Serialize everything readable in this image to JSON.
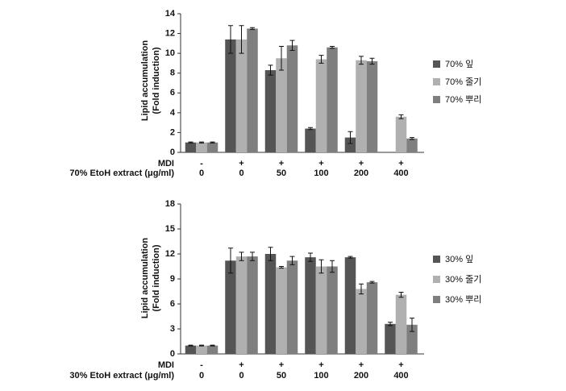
{
  "chart_data": [
    {
      "type": "bar",
      "ylabel": [
        "Lipid accumulation",
        "(Fold induction)"
      ],
      "row_labels": [
        "MDI",
        "70% EtoH extract (μg/ml)"
      ],
      "mdi": [
        "-",
        "+",
        "+",
        "+",
        "+",
        "+"
      ],
      "categories": [
        "0",
        "0",
        "50",
        "100",
        "200",
        "400"
      ],
      "ylim": [
        0,
        14
      ],
      "yticks": [
        0,
        2,
        4,
        6,
        8,
        10,
        12,
        14
      ],
      "series": [
        {
          "name": "70% 잎",
          "color": "#555555",
          "values": [
            1,
            11.4,
            8.3,
            2.4,
            1.5,
            null
          ],
          "errors": [
            0.05,
            1.4,
            0.5,
            0.1,
            0.6,
            null
          ]
        },
        {
          "name": "70% 줄기",
          "color": "#b0b0b0",
          "values": [
            1,
            11.4,
            9.5,
            9.4,
            9.3,
            3.6
          ],
          "errors": [
            0.05,
            1.4,
            1.2,
            0.4,
            0.4,
            0.2
          ]
        },
        {
          "name": "70% 뿌리",
          "color": "#7f7f7f",
          "values": [
            1,
            12.5,
            10.8,
            10.6,
            9.2,
            1.4
          ],
          "errors": [
            0.05,
            0.1,
            0.5,
            0.1,
            0.3,
            0.1
          ]
        }
      ]
    },
    {
      "type": "bar",
      "ylabel": [
        "Lipid accumulation",
        "(Fold induction)"
      ],
      "row_labels": [
        "MDI",
        "30% EtoH extract (μg/ml)"
      ],
      "mdi": [
        "-",
        "+",
        "+",
        "+",
        "+",
        "+"
      ],
      "categories": [
        "0",
        "0",
        "50",
        "100",
        "200",
        "400"
      ],
      "ylim": [
        0,
        18
      ],
      "yticks": [
        0,
        3,
        6,
        9,
        12,
        15,
        18
      ],
      "series": [
        {
          "name": "30% 잎",
          "color": "#555555",
          "values": [
            1,
            11.2,
            12,
            11.6,
            11.6,
            3.6
          ],
          "errors": [
            0.05,
            1.5,
            0.8,
            0.5,
            0.1,
            0.2
          ]
        },
        {
          "name": "30% 줄기",
          "color": "#b0b0b0",
          "values": [
            1,
            11.7,
            10.4,
            10.5,
            7.8,
            7.1
          ],
          "errors": [
            0.05,
            0.5,
            0.1,
            0.8,
            0.6,
            0.3
          ]
        },
        {
          "name": "30% 뿌리",
          "color": "#7f7f7f",
          "values": [
            1,
            11.7,
            11.2,
            10.5,
            8.6,
            3.5
          ],
          "errors": [
            0.05,
            0.5,
            0.5,
            0.7,
            0.1,
            0.8
          ]
        }
      ]
    }
  ]
}
